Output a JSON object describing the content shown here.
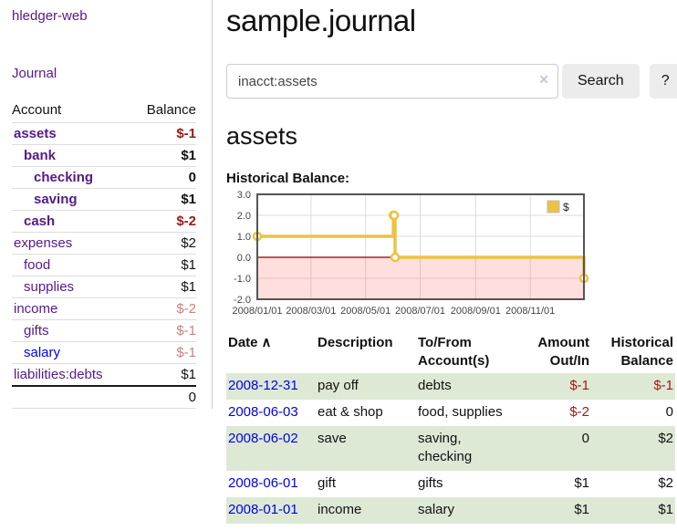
{
  "colors": {
    "link_visited_purple": "#551a8b",
    "link_unvisited_blue": "#0000ee",
    "negative_strong_red": "#9f1616",
    "negative_soft_red": "#c98181",
    "row_stripe_green": "#dde9d5",
    "chart_line_yellow": "#edc240",
    "chart_zero_line_red": "#8d0000",
    "chart_negative_fill": "rgba(255,0,0,0.13)",
    "chart_grid": "#dddddd",
    "chart_border": "#545454"
  },
  "sidebar": {
    "app_title": "hledger-web",
    "journal_link": "Journal",
    "accounts_table": {
      "headers": {
        "account": "Account",
        "balance": "Balance"
      },
      "rows": [
        {
          "name": "assets",
          "depth": 0,
          "bold": true,
          "balance": "$-1"
        },
        {
          "name": "bank",
          "depth": 1,
          "bold": true,
          "balance": "$1"
        },
        {
          "name": "checking",
          "depth": 2,
          "bold": true,
          "balance": "0"
        },
        {
          "name": "saving",
          "depth": 2,
          "bold": true,
          "balance": "$1"
        },
        {
          "name": "cash",
          "depth": 1,
          "bold": true,
          "balance": "$-2"
        },
        {
          "name": "expenses",
          "depth": 0,
          "bold": false,
          "balance": "$2"
        },
        {
          "name": "food",
          "depth": 1,
          "bold": false,
          "balance": "$1"
        },
        {
          "name": "supplies",
          "depth": 1,
          "bold": false,
          "balance": "$1"
        },
        {
          "name": "income",
          "depth": 0,
          "bold": false,
          "balance": "$-2"
        },
        {
          "name": "gifts",
          "depth": 1,
          "bold": false,
          "balance": "$-1"
        },
        {
          "name": "salary",
          "depth": 1,
          "bold": false,
          "balance": "$-1",
          "unvisited": true
        },
        {
          "name": "liabilities:debts",
          "depth": 0,
          "bold": false,
          "balance": "$1"
        }
      ],
      "total": "0"
    }
  },
  "main": {
    "page_title": "sample.journal",
    "search": {
      "value": "inacct:assets",
      "clear_icon": "✕",
      "search_button_label": "Search",
      "help_button_label": "?"
    },
    "account_heading": "assets",
    "chart_label": "Historical Balance:"
  },
  "chart_data": {
    "type": "line",
    "title": "Historical Balance",
    "step": true,
    "series": [
      {
        "name": "$",
        "color": "#edc240",
        "points": [
          {
            "x": "2008-01-01",
            "y": 1
          },
          {
            "x": "2008-06-01",
            "y": 2
          },
          {
            "x": "2008-06-02",
            "y": 2
          },
          {
            "x": "2008-06-03",
            "y": 0
          },
          {
            "x": "2008-12-31",
            "y": -1
          }
        ]
      }
    ],
    "x_range": [
      "2008-01-01",
      "2008-12-31"
    ],
    "ylim": [
      -2,
      3
    ],
    "x_ticks": [
      "2008/01/01",
      "2008/03/01",
      "2008/05/01",
      "2008/07/01",
      "2008/09/01",
      "2008/11/01"
    ],
    "y_ticks": [
      3,
      2,
      1,
      0,
      -1,
      -2
    ],
    "legend": {
      "label": "$",
      "position": "top-right"
    },
    "grid": true,
    "negative_region_shaded": true
  },
  "register_table": {
    "headers": {
      "date": "Date",
      "sort_asc_icon": "∧",
      "description": "Description",
      "accounts": "To/From Account(s)",
      "amount": "Amount Out/In",
      "balance": "Historical Balance"
    },
    "rows": [
      {
        "date": "2008-12-31",
        "description": "pay off",
        "accounts": "debts",
        "amount": "$-1",
        "balance": "$-1"
      },
      {
        "date": "2008-06-03",
        "description": "eat & shop",
        "accounts": "food, supplies",
        "amount": "$-2",
        "balance": "0"
      },
      {
        "date": "2008-06-02",
        "description": "save",
        "accounts": "saving, checking",
        "amount": "0",
        "balance": "$2"
      },
      {
        "date": "2008-06-01",
        "description": "gift",
        "accounts": "gifts",
        "amount": "$1",
        "balance": "$2"
      },
      {
        "date": "2008-01-01",
        "description": "income",
        "accounts": "salary",
        "amount": "$1",
        "balance": "$1"
      }
    ]
  }
}
